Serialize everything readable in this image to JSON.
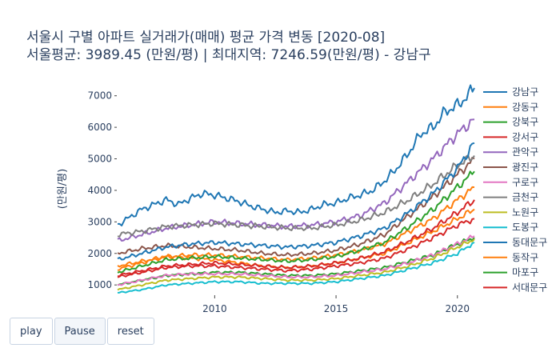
{
  "chart_data": {
    "type": "line",
    "title_line1": "서울시 구별 아파트 실거래가(매매) 평균 가격 변동 [2020-08]",
    "title_line2": "서울평균: 3989.45 (만원/평) | 최대지역: 7246.59(만원/평) - 강남구",
    "ylabel": "(만원/평)",
    "xlim": [
      2006.0,
      2020.7
    ],
    "ylim": [
      700,
      7500
    ],
    "x_ticks": [
      2010,
      2015,
      2020
    ],
    "y_ticks": [
      1000,
      2000,
      3000,
      4000,
      5000,
      6000,
      7000
    ],
    "grid": false,
    "legend_position": "right",
    "series": [
      {
        "name": "강남구",
        "color": "#1f77b4",
        "x": [
          2006.0,
          2006.5,
          2007.0,
          2007.5,
          2008.0,
          2008.5,
          2009.0,
          2009.5,
          2010.0,
          2010.5,
          2011.0,
          2011.5,
          2012.0,
          2012.5,
          2013.0,
          2013.5,
          2014.0,
          2014.5,
          2015.0,
          2015.5,
          2016.0,
          2016.5,
          2017.0,
          2017.5,
          2018.0,
          2018.5,
          2019.0,
          2019.5,
          2020.0,
          2020.3,
          2020.7
        ],
        "y": [
          2900,
          3150,
          3400,
          3550,
          3700,
          3550,
          3750,
          3900,
          3850,
          3750,
          3650,
          3500,
          3400,
          3300,
          3350,
          3300,
          3400,
          3550,
          3600,
          3750,
          3850,
          4000,
          4300,
          4700,
          5200,
          5800,
          6000,
          6500,
          6700,
          6900,
          7246.59
        ]
      },
      {
        "name": "강동구",
        "color": "#ff7f0e",
        "x": [
          2006.0,
          2007.0,
          2008.0,
          2009.0,
          2010.0,
          2011.0,
          2012.0,
          2013.0,
          2014.0,
          2015.0,
          2016.0,
          2017.0,
          2018.0,
          2019.0,
          2020.0,
          2020.7
        ],
        "y": [
          1500,
          1700,
          1900,
          1850,
          1800,
          1700,
          1600,
          1550,
          1600,
          1700,
          1850,
          2000,
          2350,
          2700,
          3100,
          3400
        ]
      },
      {
        "name": "강북구",
        "color": "#2ca02c",
        "x": [
          2006.0,
          2007.0,
          2008.0,
          2009.0,
          2010.0,
          2011.0,
          2012.0,
          2013.0,
          2014.0,
          2015.0,
          2016.0,
          2017.0,
          2018.0,
          2019.0,
          2020.0,
          2020.7
        ],
        "y": [
          1000,
          1150,
          1300,
          1350,
          1400,
          1400,
          1350,
          1300,
          1300,
          1350,
          1450,
          1550,
          1750,
          1950,
          2300,
          2500
        ]
      },
      {
        "name": "강서구",
        "color": "#d62728",
        "x": [
          2006.0,
          2007.0,
          2008.0,
          2009.0,
          2010.0,
          2011.0,
          2012.0,
          2013.0,
          2014.0,
          2015.0,
          2016.0,
          2017.0,
          2018.0,
          2019.0,
          2020.0,
          2020.7
        ],
        "y": [
          1250,
          1400,
          1550,
          1600,
          1600,
          1550,
          1500,
          1450,
          1500,
          1600,
          1700,
          1850,
          2150,
          2500,
          2900,
          3100
        ]
      },
      {
        "name": "관악구",
        "color": "#9467bd",
        "x": [
          2006.0,
          2007.0,
          2008.0,
          2009.0,
          2010.0,
          2011.0,
          2012.0,
          2013.0,
          2014.0,
          2015.0,
          2016.0,
          2017.0,
          2018.0,
          2019.0,
          2020.0,
          2020.7
        ],
        "y": [
          2400,
          2600,
          2800,
          2900,
          3000,
          2950,
          2900,
          2850,
          2900,
          3000,
          3200,
          3600,
          4300,
          5000,
          5800,
          6250
        ]
      },
      {
        "name": "광진구",
        "color": "#8c564b",
        "x": [
          2006.0,
          2007.0,
          2008.0,
          2009.0,
          2010.0,
          2011.0,
          2012.0,
          2013.0,
          2014.0,
          2015.0,
          2016.0,
          2017.0,
          2018.0,
          2019.0,
          2020.0,
          2020.7
        ],
        "y": [
          2000,
          2150,
          2250,
          2200,
          2150,
          2100,
          2000,
          1950,
          2000,
          2100,
          2300,
          2600,
          3200,
          3800,
          4500,
          5000
        ]
      },
      {
        "name": "구로구",
        "color": "#e377c2",
        "x": [
          2006.0,
          2007.0,
          2008.0,
          2009.0,
          2010.0,
          2011.0,
          2012.0,
          2013.0,
          2014.0,
          2015.0,
          2016.0,
          2017.0,
          2018.0,
          2019.0,
          2020.0,
          2020.7
        ],
        "y": [
          1000,
          1150,
          1300,
          1350,
          1350,
          1350,
          1300,
          1250,
          1250,
          1300,
          1400,
          1500,
          1700,
          1950,
          2300,
          2550
        ]
      },
      {
        "name": "금천구",
        "color": "#7f7f7f",
        "x": [
          2006.0,
          2007.0,
          2008.0,
          2009.0,
          2010.0,
          2011.0,
          2012.0,
          2013.0,
          2014.0,
          2015.0,
          2016.0,
          2017.0,
          2018.0,
          2019.0,
          2020.0,
          2020.7
        ],
        "y": [
          2600,
          2700,
          2850,
          2900,
          2950,
          2900,
          2850,
          2800,
          2800,
          2900,
          3050,
          3300,
          3700,
          4200,
          4800,
          5100
        ]
      },
      {
        "name": "노원구",
        "color": "#bcbd22",
        "x": [
          2006.0,
          2007.0,
          2008.0,
          2009.0,
          2010.0,
          2011.0,
          2012.0,
          2013.0,
          2014.0,
          2015.0,
          2016.0,
          2017.0,
          2018.0,
          2019.0,
          2020.0,
          2020.7
        ],
        "y": [
          850,
          1000,
          1150,
          1200,
          1250,
          1250,
          1200,
          1150,
          1150,
          1200,
          1300,
          1400,
          1600,
          1850,
          2200,
          2450
        ]
      },
      {
        "name": "도봉구",
        "color": "#17becf",
        "x": [
          2006.0,
          2007.0,
          2008.0,
          2009.0,
          2010.0,
          2011.0,
          2012.0,
          2013.0,
          2014.0,
          2015.0,
          2016.0,
          2017.0,
          2018.0,
          2019.0,
          2020.0,
          2020.7
        ],
        "y": [
          750,
          850,
          1000,
          1050,
          1100,
          1100,
          1050,
          1050,
          1050,
          1100,
          1200,
          1300,
          1500,
          1700,
          2000,
          2350
        ]
      },
      {
        "name": "동대문구",
        "color": "#1f77b4",
        "x": [
          2006.0,
          2007.0,
          2008.0,
          2009.0,
          2010.0,
          2011.0,
          2012.0,
          2013.0,
          2014.0,
          2015.0,
          2016.0,
          2017.0,
          2018.0,
          2019.0,
          2020.0,
          2020.7
        ],
        "y": [
          1800,
          2000,
          2200,
          2300,
          2350,
          2300,
          2250,
          2200,
          2250,
          2350,
          2550,
          2800,
          3300,
          3900,
          4700,
          5500
        ]
      },
      {
        "name": "동작구",
        "color": "#ff7f0e",
        "x": [
          2006.0,
          2007.0,
          2008.0,
          2009.0,
          2010.0,
          2011.0,
          2012.0,
          2013.0,
          2014.0,
          2015.0,
          2016.0,
          2017.0,
          2018.0,
          2019.0,
          2020.0,
          2020.7
        ],
        "y": [
          1600,
          1750,
          1900,
          1950,
          1950,
          1900,
          1850,
          1800,
          1850,
          1950,
          2100,
          2300,
          2700,
          3100,
          3700,
          4100
        ]
      },
      {
        "name": "마포구",
        "color": "#2ca02c",
        "x": [
          2006.0,
          2007.0,
          2008.0,
          2009.0,
          2010.0,
          2011.0,
          2012.0,
          2013.0,
          2014.0,
          2015.0,
          2016.0,
          2017.0,
          2018.0,
          2019.0,
          2020.0,
          2020.7
        ],
        "y": [
          1400,
          1600,
          1800,
          1850,
          1900,
          1850,
          1800,
          1750,
          1800,
          1900,
          2100,
          2350,
          2850,
          3400,
          4100,
          4600
        ]
      },
      {
        "name": "서대문구",
        "color": "#d62728",
        "x": [
          2006.0,
          2007.0,
          2008.0,
          2009.0,
          2010.0,
          2011.0,
          2012.0,
          2013.0,
          2014.0,
          2015.0,
          2016.0,
          2017.0,
          2018.0,
          2019.0,
          2020.0,
          2020.7
        ],
        "y": [
          1300,
          1450,
          1600,
          1650,
          1700,
          1650,
          1600,
          1550,
          1600,
          1700,
          1850,
          2050,
          2400,
          2800,
          3300,
          3700
        ]
      }
    ]
  },
  "controls": {
    "play_label": "play",
    "pause_label": "Pause",
    "reset_label": "reset"
  }
}
